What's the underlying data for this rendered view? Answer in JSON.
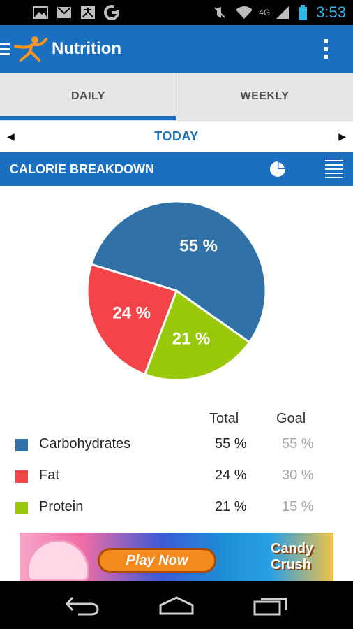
{
  "status_bar": {
    "icons": [
      "image-icon",
      "gmail-icon",
      "fitness-icon",
      "google-icon",
      "mute-icon",
      "wifi-icon",
      "signal-icon",
      "battery-icon"
    ],
    "network": "4G",
    "time": "3:53"
  },
  "app_bar": {
    "title": "Nutrition"
  },
  "tabs": [
    {
      "label": "DAILY",
      "active": true
    },
    {
      "label": "WEEKLY",
      "active": false
    }
  ],
  "date_nav": {
    "label": "TODAY"
  },
  "section": {
    "title": "CALORIE BREAKDOWN"
  },
  "chart_data": {
    "type": "pie",
    "slices": [
      {
        "name": "Carbohydrates",
        "value": 55,
        "label": "55 %",
        "color": "#3072a8"
      },
      {
        "name": "Fat",
        "value": 24,
        "label": "24 %",
        "color": "#f24449"
      },
      {
        "name": "Protein",
        "value": 21,
        "label": "21 %",
        "color": "#9ac90b"
      }
    ]
  },
  "table": {
    "headers": {
      "total": "Total",
      "goal": "Goal"
    },
    "rows": [
      {
        "name": "Carbohydrates",
        "total": "55 %",
        "goal": "55 %",
        "color": "#3072a8"
      },
      {
        "name": "Fat",
        "total": "24 %",
        "goal": "30 %",
        "color": "#f24449"
      },
      {
        "name": "Protein",
        "total": "21 %",
        "goal": "15 %",
        "color": "#9ac90b"
      }
    ]
  },
  "ad": {
    "button_label": "Play Now",
    "brand": "Candy Crush"
  },
  "nav_bar": {
    "icons": [
      "back-icon",
      "home-icon",
      "recent-apps-icon"
    ]
  },
  "colors": {
    "primary": "#1b6fc0",
    "tab_background": "#e6e6e6"
  }
}
